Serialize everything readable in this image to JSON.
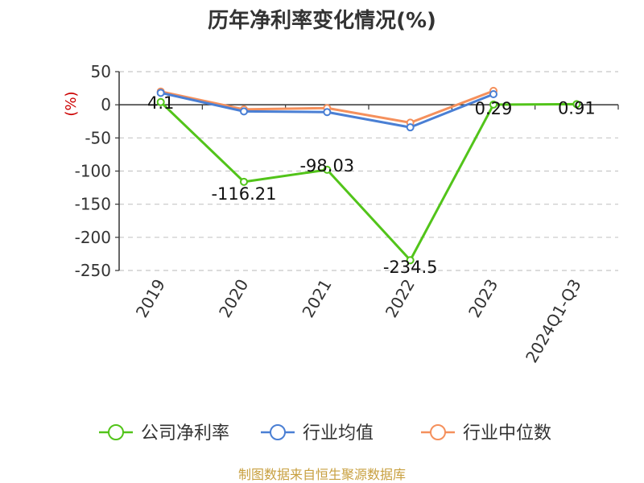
{
  "chart_data": {
    "type": "line",
    "title": "历年净利率变化情况(%)",
    "ylabel": "(%)",
    "categories": [
      "2019",
      "2020",
      "2021",
      "2022",
      "2023",
      "2024Q1-Q3"
    ],
    "yticks": [
      50,
      0,
      -50,
      -100,
      -150,
      -200,
      -250
    ],
    "ylim": [
      -250,
      50
    ],
    "grid": true,
    "legend_position": "bottom",
    "series": [
      {
        "name": "公司净利率",
        "color": "#52c41a",
        "values": [
          4.1,
          -116.21,
          -98.03,
          -234.5,
          0.29,
          0.91
        ],
        "labels": [
          "4.1",
          "-116.21",
          "-98.03",
          "-234.5",
          "0.29",
          "0.91"
        ]
      },
      {
        "name": "行业均值",
        "color": "#4a7fd4",
        "values": [
          18,
          -10,
          -11,
          -34,
          16,
          null
        ]
      },
      {
        "name": "行业中位数",
        "color": "#f5905c",
        "values": [
          20,
          -7,
          -5,
          -27,
          21,
          null
        ]
      }
    ]
  },
  "source": "制图数据来自恒生聚源数据库"
}
